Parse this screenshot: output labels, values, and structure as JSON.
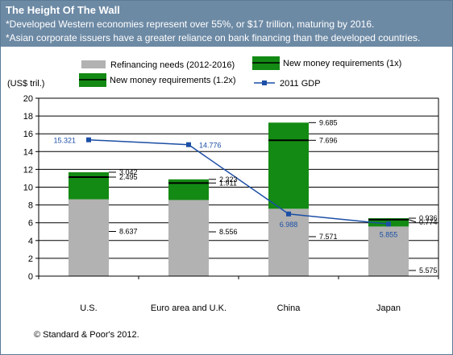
{
  "header": {
    "title": "The Height Of The Wall",
    "subtitle_1": "*Developed Western economies represent over 55%, or $17 trillion, maturing by 2016.",
    "subtitle_2": "*Asian corporate  issuers have a greater reliance on bank financing than the developed countries."
  },
  "footer": {
    "source": "© Standard & Poor's 2012."
  },
  "colors": {
    "refinancing": "#b2b2b2",
    "new_money": "#138a13",
    "marker_line": "#000000",
    "gdp": "#1c4fa6",
    "grid": "#000000",
    "header_bg": "#6d8aa5"
  },
  "chart_data": {
    "type": "bar",
    "stacked": true,
    "ylabel": "(US$ tril.)",
    "ylim": [
      0,
      20
    ],
    "ytick_step": 2,
    "grid": true,
    "legend_placement": "top",
    "categories": [
      "U.S.",
      "Euro area and U.K.",
      "China",
      "Japan"
    ],
    "series": [
      {
        "name": "Refinancing needs (2012-2016)",
        "kind": "bar",
        "values": [
          8.637,
          8.556,
          7.571,
          5.575
        ],
        "labels": [
          "8.637",
          "8.556",
          "7.571",
          "5.575"
        ]
      },
      {
        "name": "New money requirements (1.2x)",
        "kind": "bar",
        "values": [
          3.042,
          2.323,
          9.685,
          0.936
        ],
        "labels": [
          "3.042",
          "2.323",
          "9.685",
          "0.936"
        ]
      },
      {
        "name": "New money requirements (1x)",
        "kind": "marker",
        "values": [
          2.495,
          1.911,
          7.696,
          0.774
        ],
        "labels": [
          "2.495",
          "1.911",
          "7.696",
          "0.774"
        ]
      },
      {
        "name": "2011 GDP",
        "kind": "line",
        "values": [
          15.321,
          14.776,
          6.988,
          5.855
        ],
        "labels": [
          "15.321",
          "14.776",
          "6.988",
          "5.855"
        ]
      }
    ]
  }
}
